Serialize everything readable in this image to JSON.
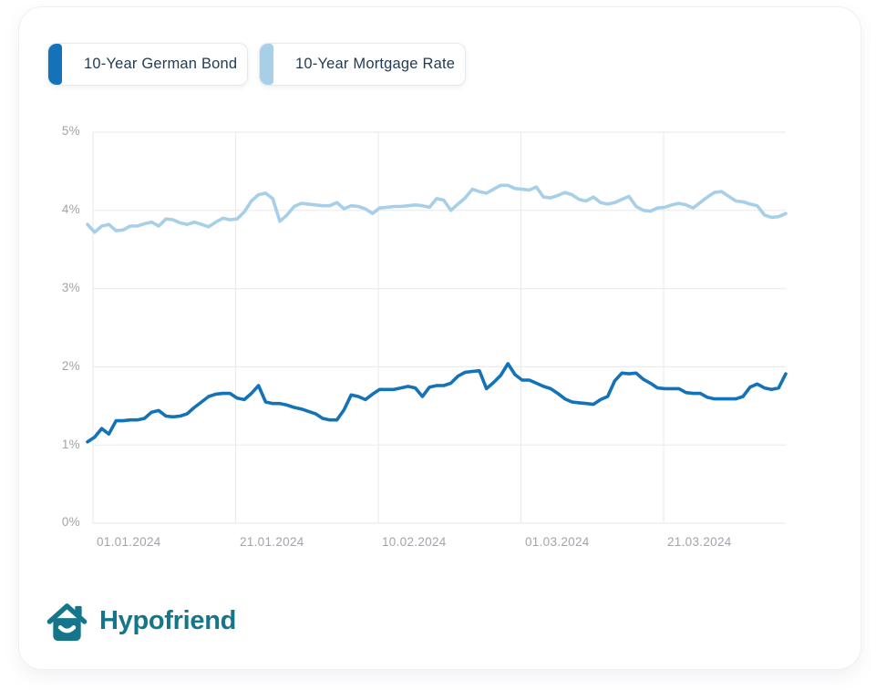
{
  "legend": {
    "items": [
      {
        "label": "10-Year German Bond"
      },
      {
        "label": "10-Year Mortgage Rate"
      }
    ]
  },
  "chart_data": {
    "type": "line",
    "title": "",
    "x_tick_labels": [
      "01.01.2024",
      "21.01.2024",
      "10.02.2024",
      "01.03.2024",
      "21.03.2024"
    ],
    "y_tick_labels": [
      "5%",
      "4%",
      "3%",
      "2%",
      "1%",
      "0%"
    ],
    "ylim": [
      0,
      5
    ],
    "y_unit": "%",
    "grid": true,
    "grid_color": "#ececef",
    "legend_position": "top-left",
    "series": [
      {
        "name": "10-Year German Bond",
        "color": "#1473b8",
        "values": [
          1.04,
          1.1,
          1.21,
          1.14,
          1.31,
          1.31,
          1.32,
          1.32,
          1.34,
          1.42,
          1.44,
          1.37,
          1.36,
          1.37,
          1.4,
          1.48,
          1.55,
          1.62,
          1.65,
          1.66,
          1.66,
          1.6,
          1.58,
          1.66,
          1.76,
          1.55,
          1.53,
          1.53,
          1.51,
          1.48,
          1.46,
          1.43,
          1.4,
          1.34,
          1.32,
          1.32,
          1.45,
          1.64,
          1.62,
          1.58,
          1.65,
          1.71,
          1.71,
          1.71,
          1.73,
          1.75,
          1.73,
          1.62,
          1.74,
          1.76,
          1.76,
          1.79,
          1.88,
          1.93,
          1.94,
          1.95,
          1.72,
          1.8,
          1.89,
          2.04,
          1.9,
          1.83,
          1.83,
          1.79,
          1.75,
          1.72,
          1.66,
          1.59,
          1.55,
          1.54,
          1.53,
          1.52,
          1.58,
          1.62,
          1.82,
          1.92,
          1.91,
          1.92,
          1.84,
          1.79,
          1.73,
          1.72,
          1.72,
          1.72,
          1.67,
          1.66,
          1.66,
          1.61,
          1.59,
          1.59,
          1.59,
          1.59,
          1.62,
          1.74,
          1.78,
          1.73,
          1.71,
          1.73,
          1.91
        ]
      },
      {
        "name": "10-Year Mortgage Rate",
        "color": "#a8cfe8",
        "values": [
          3.82,
          3.72,
          3.8,
          3.82,
          3.74,
          3.75,
          3.8,
          3.8,
          3.83,
          3.85,
          3.8,
          3.89,
          3.88,
          3.84,
          3.82,
          3.85,
          3.82,
          3.79,
          3.85,
          3.9,
          3.88,
          3.89,
          3.98,
          4.12,
          4.2,
          4.22,
          4.15,
          3.86,
          3.94,
          4.05,
          4.09,
          4.08,
          4.07,
          4.06,
          4.06,
          4.1,
          4.02,
          4.06,
          4.05,
          4.02,
          3.96,
          4.03,
          4.04,
          4.05,
          4.05,
          4.06,
          4.07,
          4.06,
          4.04,
          4.15,
          4.13,
          4.0,
          4.08,
          4.16,
          4.27,
          4.24,
          4.22,
          4.27,
          4.32,
          4.32,
          4.28,
          4.27,
          4.26,
          4.3,
          4.17,
          4.16,
          4.19,
          4.23,
          4.2,
          4.14,
          4.12,
          4.17,
          4.1,
          4.08,
          4.1,
          4.14,
          4.18,
          4.05,
          4.0,
          3.99,
          4.03,
          4.04,
          4.07,
          4.09,
          4.07,
          4.03,
          4.1,
          4.17,
          4.23,
          4.24,
          4.18,
          4.12,
          4.11,
          4.08,
          4.06,
          3.94,
          3.91,
          3.92,
          3.96
        ]
      }
    ]
  },
  "footer": {
    "brand_name": "Hypofriend",
    "brand_color": "#15768b"
  }
}
